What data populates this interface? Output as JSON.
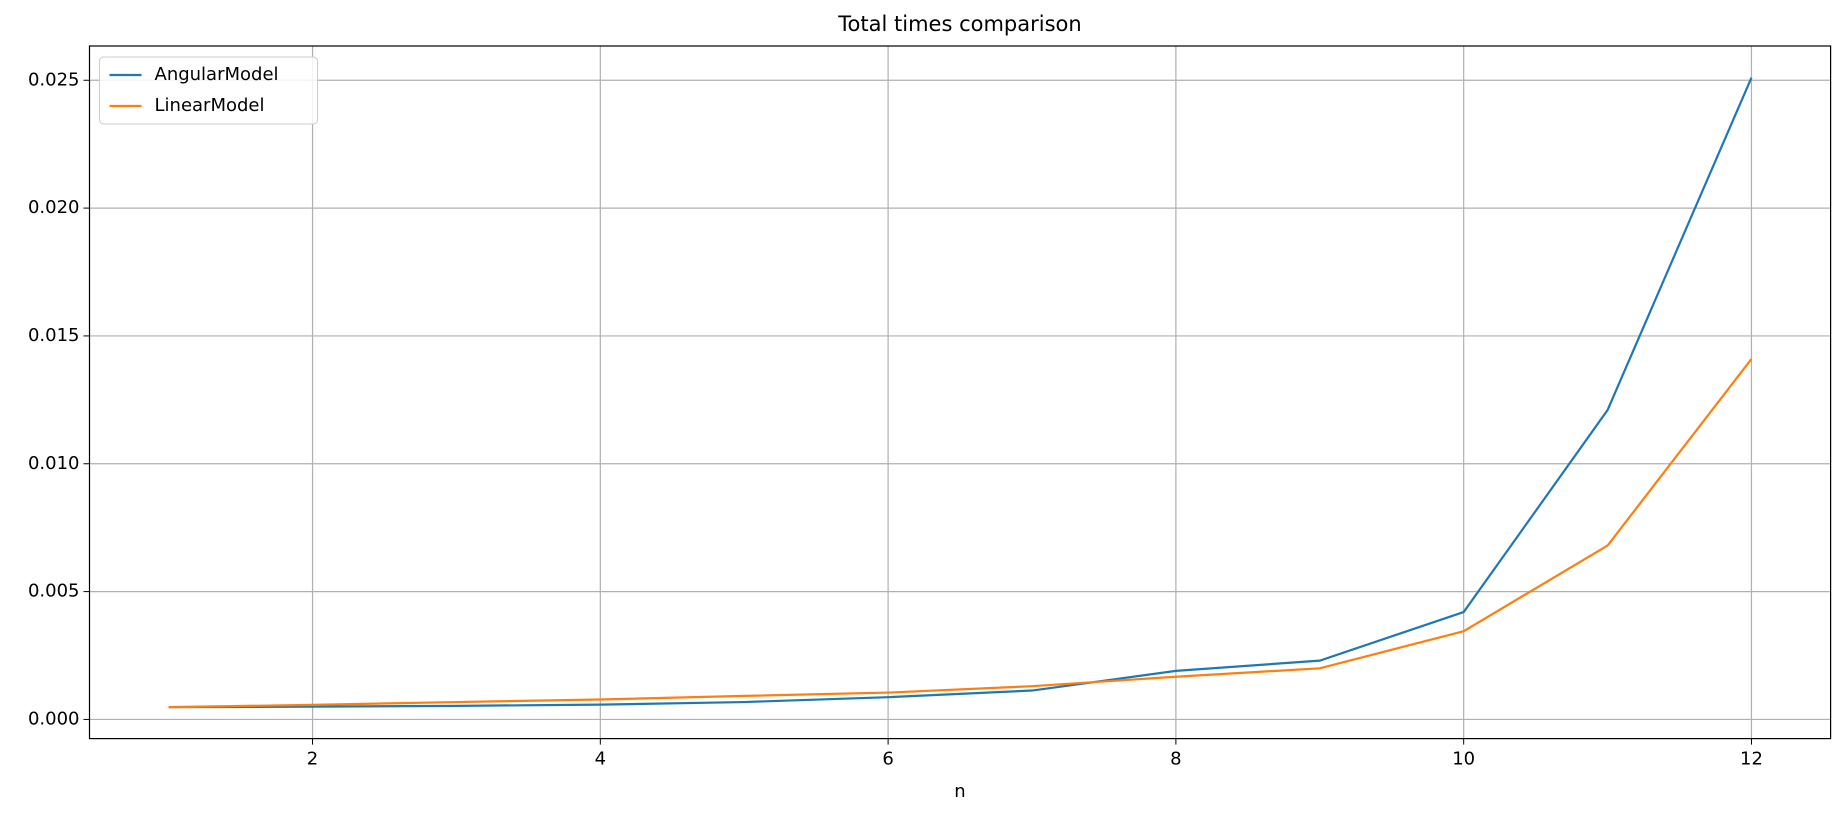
{
  "chart_data": {
    "type": "line",
    "title": "Total times comparison",
    "x_label": "n",
    "x": [
      1,
      2,
      3,
      4,
      5,
      6,
      7,
      8,
      9,
      10,
      11,
      12
    ],
    "series": [
      {
        "name": "AngularModel",
        "color": "#1f77b4",
        "values": [
          0.00048,
          0.0005,
          0.00053,
          0.00058,
          0.00068,
          0.00087,
          0.00113,
          0.0019,
          0.0023,
          0.0042,
          0.0121,
          0.0251
        ]
      },
      {
        "name": "LinearModel",
        "color": "#ff7f0e",
        "values": [
          0.00048,
          0.00057,
          0.00068,
          0.00078,
          0.00092,
          0.00105,
          0.0013,
          0.00167,
          0.002,
          0.00345,
          0.0068,
          0.0141
        ]
      }
    ],
    "xlim": [
      0.45,
      12.55
    ],
    "xticks": [
      2,
      4,
      6,
      8,
      10,
      12
    ],
    "ylim": [
      -0.00075,
      0.02634
    ],
    "yticks": [
      {
        "value": 0,
        "label": "0.000"
      },
      {
        "value": 0.005,
        "label": "0.005"
      },
      {
        "value": 0.01,
        "label": "0.010"
      },
      {
        "value": 0.015,
        "label": "0.015"
      },
      {
        "value": 0.02,
        "label": "0.020"
      },
      {
        "value": 0.025,
        "label": "0.025"
      }
    ],
    "grid": true,
    "legend": "upper left"
  }
}
